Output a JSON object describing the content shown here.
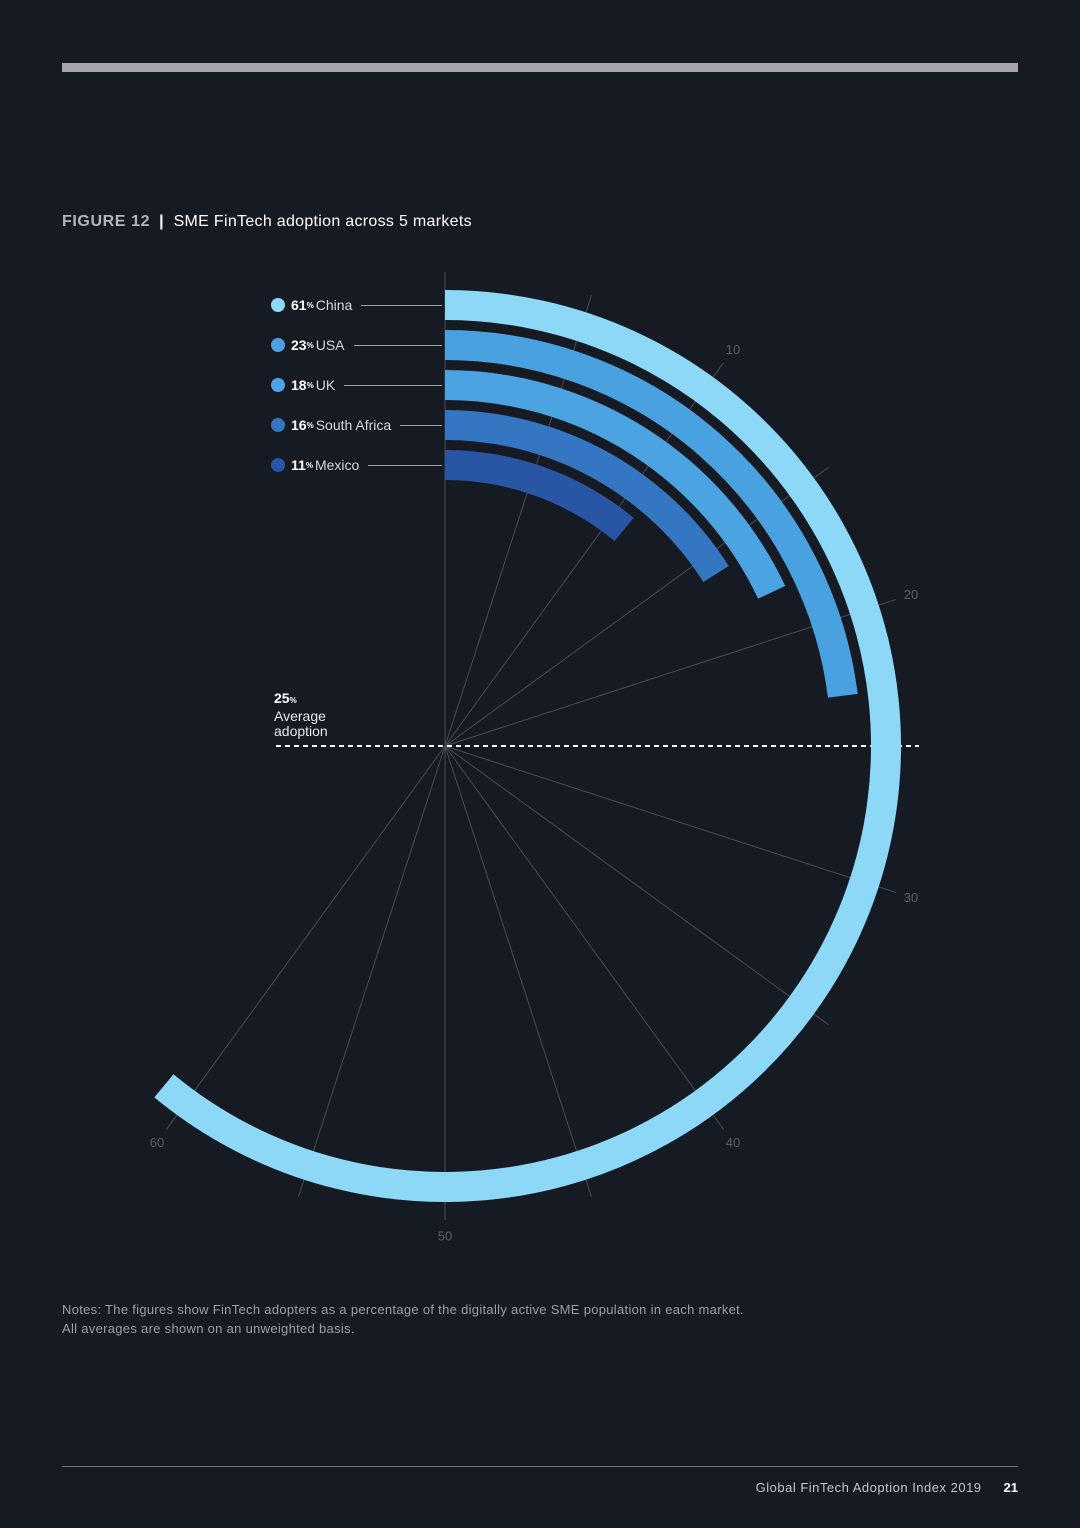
{
  "page": {
    "background": "#161a22"
  },
  "figure": {
    "label": "FIGURE 12",
    "separator": "|"
  },
  "chart_data": {
    "type": "bar",
    "title": "SME FinTech adoption across 5 markets",
    "categories": [
      "China",
      "USA",
      "UK",
      "South Africa",
      "Mexico"
    ],
    "values": [
      61,
      23,
      18,
      16,
      11
    ],
    "unit": "%",
    "colors": [
      "#8dd7f7",
      "#4aa1df",
      "#4ba3e1",
      "#3476c2",
      "#2956a4"
    ],
    "axis": {
      "range": [
        0,
        100
      ],
      "ticks": [
        10,
        20,
        30,
        40,
        50,
        60
      ],
      "grid_step": 5
    },
    "grid": true,
    "reference_line": {
      "value": 25,
      "unit": "%",
      "label": [
        "Average",
        "adoption"
      ],
      "color": "#ffffff"
    }
  },
  "notes": [
    "Notes: The figures show FinTech adopters as a percentage of the digitally active SME population in each market.",
    "All averages are shown on an unweighted basis."
  ],
  "footer": {
    "publication": "Global FinTech Adoption Index 2019",
    "page_number": "21"
  }
}
